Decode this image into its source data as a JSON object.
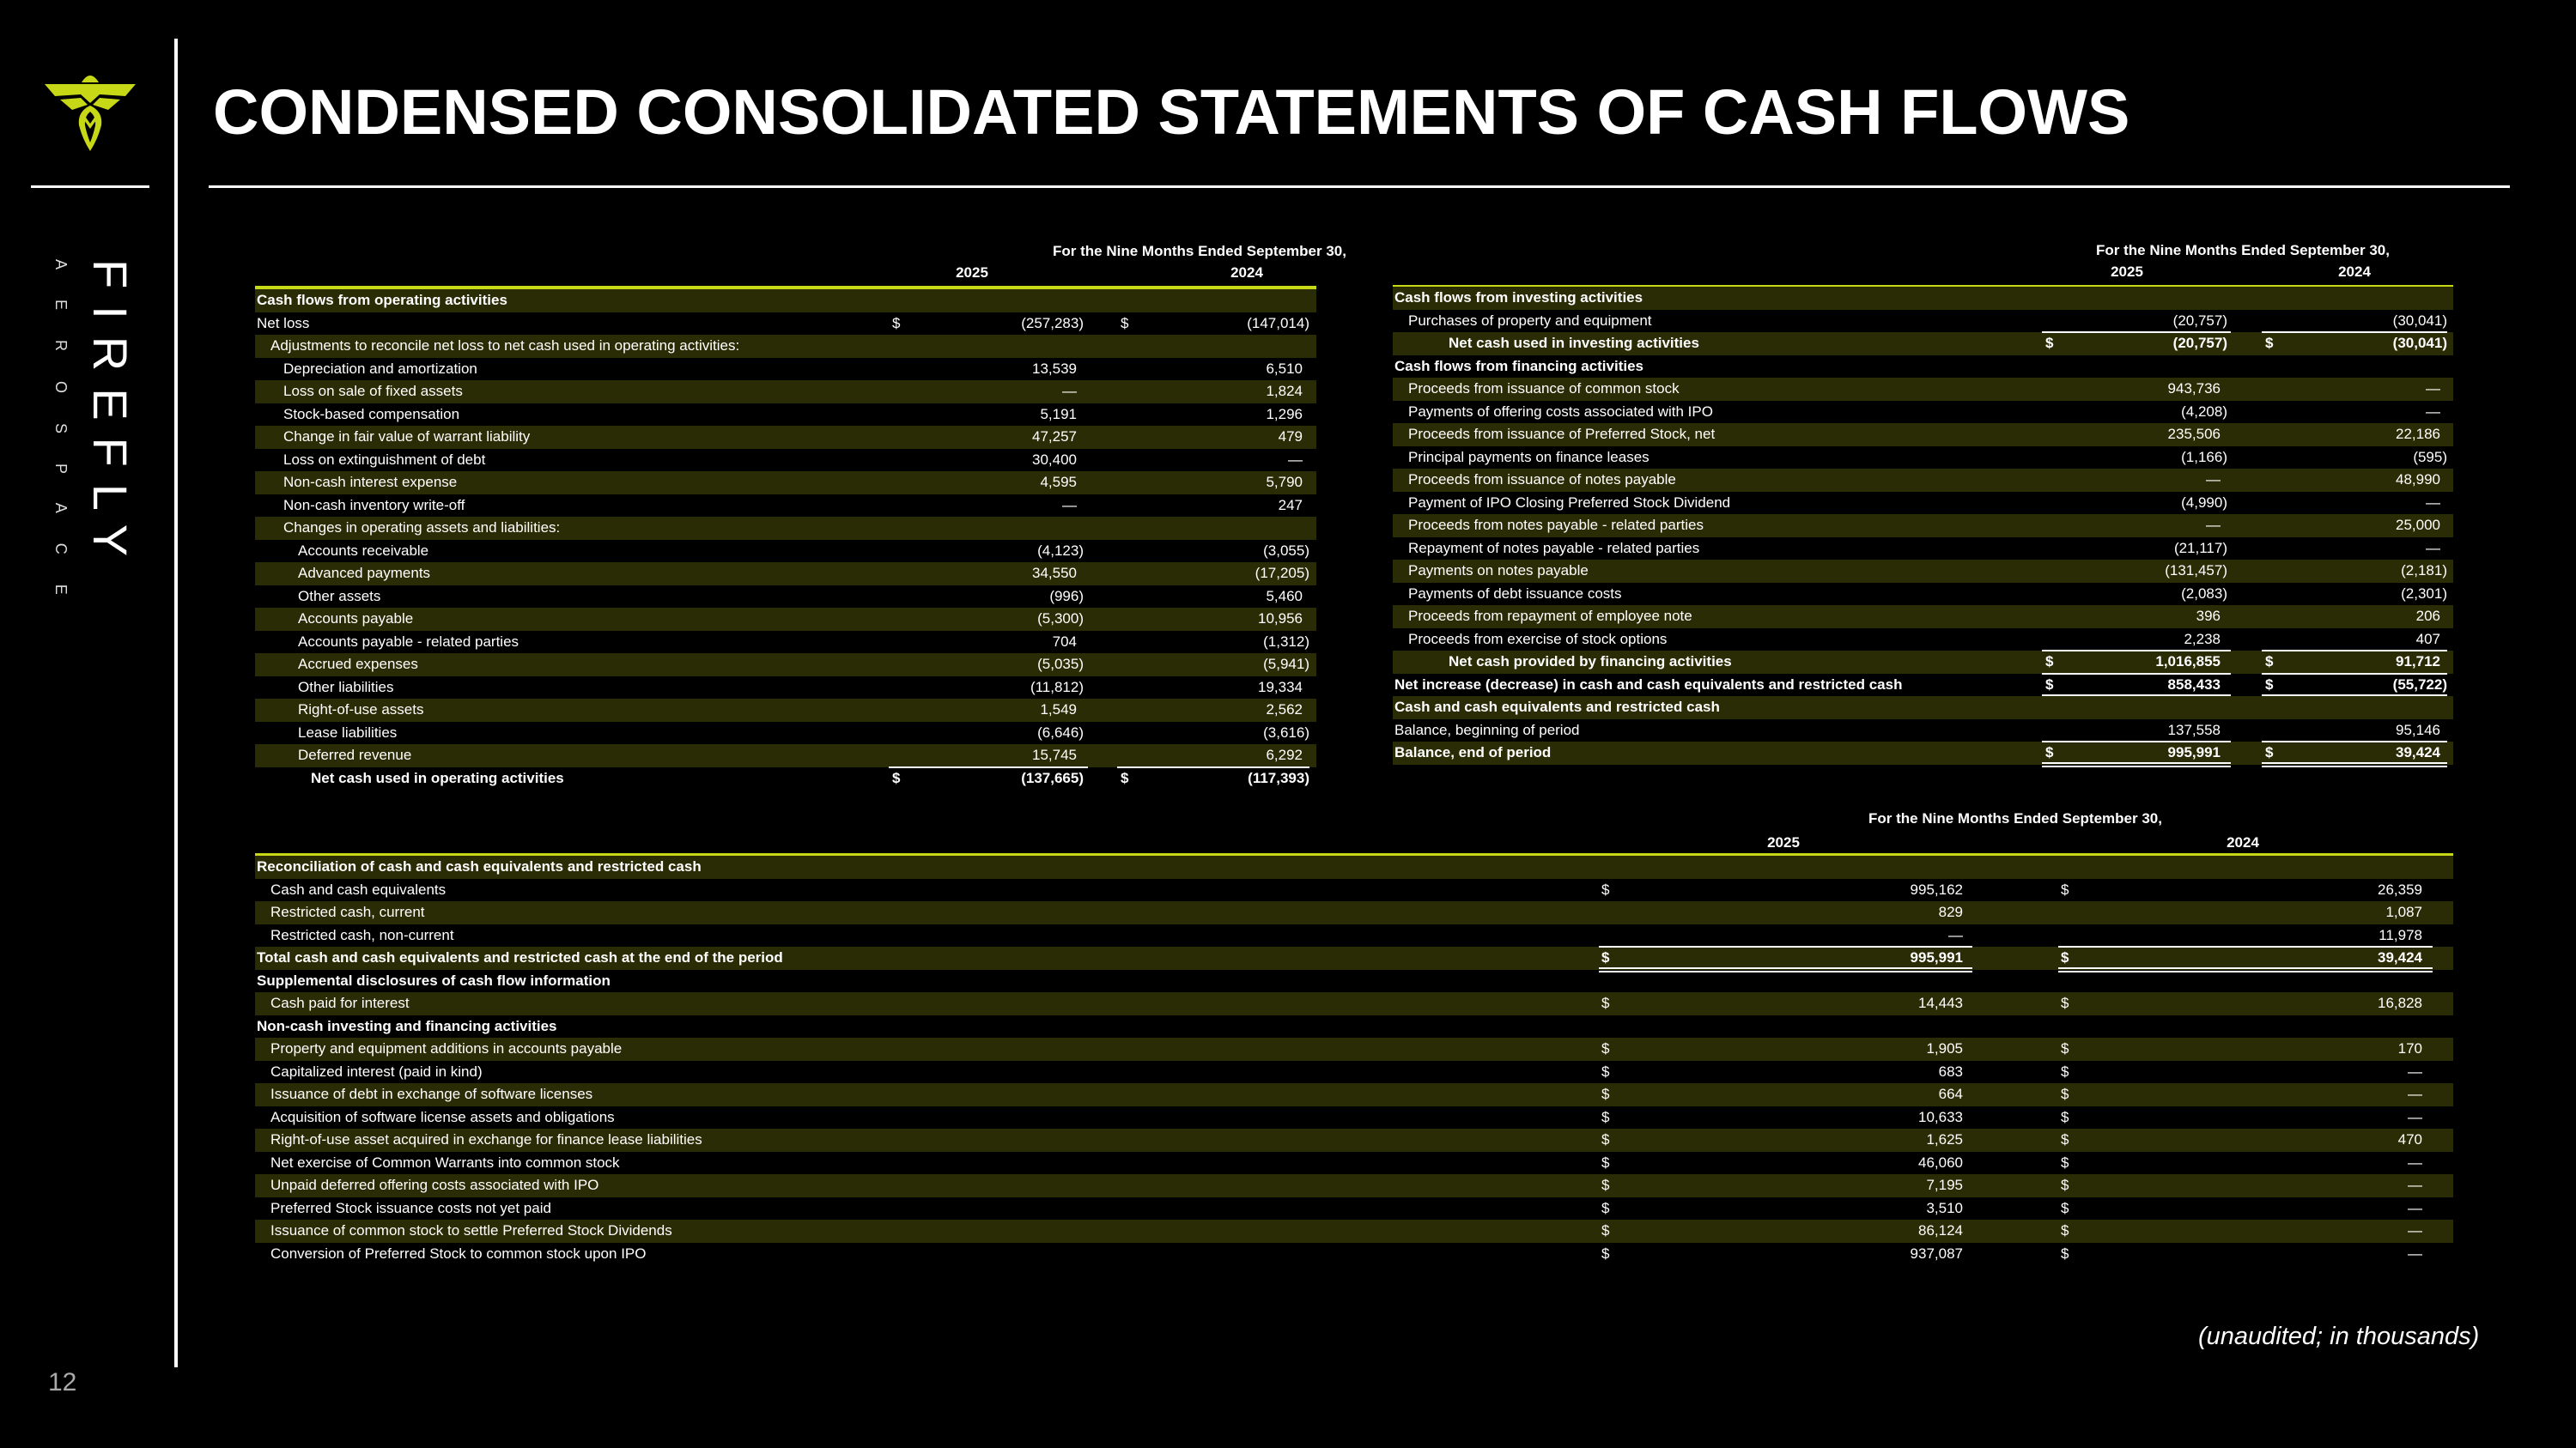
{
  "title": "CONDENSED CONSOLIDATED STATEMENTS OF CASH FLOWS",
  "brand": {
    "wordmark": "FIREFLY",
    "sub": "AEROSPACE",
    "logo_icon": "firefly-logo-icon",
    "accent_color": "#c6d816"
  },
  "page_number": "12",
  "footnote": "(unaudited; in thousands)",
  "operating": {
    "header": "For the Nine Months Ended September 30,",
    "years": [
      "2025",
      "2024"
    ],
    "rows": [
      {
        "label": "Cash flows from operating activities",
        "level": 0,
        "bold": true
      },
      {
        "label": "Net loss",
        "level": 0,
        "d1": "$",
        "v1": "(257,283)",
        "d2": "$",
        "v2": "(147,014)"
      },
      {
        "label": "Adjustments to reconcile net loss to net cash used in operating activities:",
        "level": 1
      },
      {
        "label": "Depreciation and amortization",
        "level": 2,
        "v1": "13,539",
        "v2": "6,510"
      },
      {
        "label": "Loss on sale of fixed assets",
        "level": 2,
        "v1": "—",
        "v2": "1,824"
      },
      {
        "label": "Stock-based compensation",
        "level": 2,
        "v1": "5,191",
        "v2": "1,296"
      },
      {
        "label": "Change in fair value of warrant liability",
        "level": 2,
        "v1": "47,257",
        "v2": "479"
      },
      {
        "label": "Loss on extinguishment of debt",
        "level": 2,
        "v1": "30,400",
        "v2": "—"
      },
      {
        "label": "Non-cash interest expense",
        "level": 2,
        "v1": "4,595",
        "v2": "5,790"
      },
      {
        "label": "Non-cash inventory write-off",
        "level": 2,
        "v1": "—",
        "v2": "247"
      },
      {
        "label": "Changes in operating assets and liabilities:",
        "level": 2
      },
      {
        "label": "Accounts receivable",
        "level": 3,
        "v1": "(4,123)",
        "v2": "(3,055)"
      },
      {
        "label": "Advanced payments",
        "level": 3,
        "v1": "34,550",
        "v2": "(17,205)"
      },
      {
        "label": "Other assets",
        "level": 3,
        "v1": "(996)",
        "v2": "5,460"
      },
      {
        "label": "Accounts payable",
        "level": 3,
        "v1": "(5,300)",
        "v2": "10,956"
      },
      {
        "label": "Accounts payable - related parties",
        "level": 3,
        "v1": "704",
        "v2": "(1,312)"
      },
      {
        "label": "Accrued expenses",
        "level": 3,
        "v1": "(5,035)",
        "v2": "(5,941)"
      },
      {
        "label": "Other liabilities",
        "level": 3,
        "v1": "(11,812)",
        "v2": "19,334"
      },
      {
        "label": "Right-of-use assets",
        "level": 3,
        "v1": "1,549",
        "v2": "2,562"
      },
      {
        "label": "Lease liabilities",
        "level": 3,
        "v1": "(6,646)",
        "v2": "(3,616)"
      },
      {
        "label": "Deferred revenue",
        "level": 3,
        "v1": "15,745",
        "v2": "6,292"
      },
      {
        "label": "Net cash used in operating activities",
        "level": 4,
        "bold": true,
        "d1": "$",
        "v1": "(137,665)",
        "d2": "$",
        "v2": "(117,393)",
        "rule_above": true
      }
    ]
  },
  "investing_financing": {
    "header": "For the Nine Months Ended September 30,",
    "years": [
      "2025",
      "2024"
    ],
    "rows": [
      {
        "label": "Cash flows from investing activities",
        "level": 0,
        "bold": true
      },
      {
        "label": "Purchases of property and equipment",
        "level": 1,
        "v1": "(20,757)",
        "v2": "(30,041)"
      },
      {
        "label": "Net cash used in investing activities",
        "level": 4,
        "bold": true,
        "d1": "$",
        "v1": "(20,757)",
        "d2": "$",
        "v2": "(30,041)",
        "rule_above": true
      },
      {
        "label": "Cash flows from financing activities",
        "level": 0,
        "bold": true
      },
      {
        "label": "Proceeds from issuance of common stock",
        "level": 1,
        "v1": "943,736",
        "v2": "—"
      },
      {
        "label": "Payments of offering costs associated with IPO",
        "level": 1,
        "v1": "(4,208)",
        "v2": "—"
      },
      {
        "label": "Proceeds from issuance of Preferred Stock, net",
        "level": 1,
        "v1": "235,506",
        "v2": "22,186"
      },
      {
        "label": "Principal payments on finance leases",
        "level": 1,
        "v1": "(1,166)",
        "v2": "(595)"
      },
      {
        "label": "Proceeds from issuance of notes payable",
        "level": 1,
        "v1": "—",
        "v2": "48,990"
      },
      {
        "label": "Payment of IPO Closing Preferred Stock Dividend",
        "level": 1,
        "v1": "(4,990)",
        "v2": "—"
      },
      {
        "label": "Proceeds from notes payable - related parties",
        "level": 1,
        "v1": "—",
        "v2": "25,000"
      },
      {
        "label": "Repayment of notes payable - related parties",
        "level": 1,
        "v1": "(21,117)",
        "v2": "—"
      },
      {
        "label": "Payments on notes payable",
        "level": 1,
        "v1": "(131,457)",
        "v2": "(2,181)"
      },
      {
        "label": "Payments of debt issuance costs",
        "level": 1,
        "v1": "(2,083)",
        "v2": "(2,301)"
      },
      {
        "label": "Proceeds from repayment of employee note",
        "level": 1,
        "v1": "396",
        "v2": "206"
      },
      {
        "label": "Proceeds from exercise of stock options",
        "level": 1,
        "v1": "2,238",
        "v2": "407"
      },
      {
        "label": "Net cash provided by financing activities",
        "level": 4,
        "bold": true,
        "d1": "$",
        "v1": "1,016,855",
        "d2": "$",
        "v2": "91,712",
        "rule_above": true
      },
      {
        "label": "Net increase (decrease) in cash and cash equivalents and restricted cash",
        "level": 0,
        "bold": true,
        "d1": "$",
        "v1": "858,433",
        "d2": "$",
        "v2": "(55,722)",
        "rule_above": true,
        "rule_below": true
      },
      {
        "label": "Cash and cash equivalents and restricted cash",
        "level": 0,
        "bold": true
      },
      {
        "label": "Balance, beginning of period",
        "level": 0,
        "v1": "137,558",
        "v2": "95,146"
      },
      {
        "label": "Balance, end of period",
        "level": 0,
        "bold": true,
        "d1": "$",
        "v1": "995,991",
        "d2": "$",
        "v2": "39,424",
        "rule_above": true,
        "double_below": true
      }
    ]
  },
  "reconciliation": {
    "header": "For the Nine Months Ended September 30,",
    "years": [
      "2025",
      "2024"
    ],
    "rows": [
      {
        "label": "Reconciliation of cash and cash equivalents and restricted cash",
        "level": 0,
        "bold": true
      },
      {
        "label": "Cash and cash equivalents",
        "level": 1,
        "d1": "$",
        "v1": "995,162",
        "d2": "$",
        "v2": "26,359"
      },
      {
        "label": "Restricted cash, current",
        "level": 1,
        "v1": "829",
        "v2": "1,087"
      },
      {
        "label": "Restricted cash, non-current",
        "level": 1,
        "v1": "—",
        "v2": "11,978"
      },
      {
        "label": "Total cash and cash equivalents and restricted cash at the end of the period",
        "level": 0,
        "bold": true,
        "d1": "$",
        "v1": "995,991",
        "d2": "$",
        "v2": "39,424",
        "rule_above": true,
        "double_below": true
      },
      {
        "label": "Supplemental disclosures of cash flow information",
        "level": 0,
        "bold": true
      },
      {
        "label": "Cash paid for interest",
        "level": 1,
        "d1": "$",
        "v1": "14,443",
        "d2": "$",
        "v2": "16,828"
      },
      {
        "label": "Non-cash investing and financing activities",
        "level": 0,
        "bold": true
      },
      {
        "label": "Property and equipment additions in accounts payable",
        "level": 1,
        "d1": "$",
        "v1": "1,905",
        "d2": "$",
        "v2": "170"
      },
      {
        "label": "Capitalized interest (paid in kind)",
        "level": 1,
        "d1": "$",
        "v1": "683",
        "d2": "$",
        "v2": "—"
      },
      {
        "label": "Issuance of debt in exchange of software licenses",
        "level": 1,
        "d1": "$",
        "v1": "664",
        "d2": "$",
        "v2": "—"
      },
      {
        "label": "Acquisition of software license assets and obligations",
        "level": 1,
        "d1": "$",
        "v1": "10,633",
        "d2": "$",
        "v2": "—"
      },
      {
        "label": "Right-of-use asset acquired in exchange for finance lease liabilities",
        "level": 1,
        "d1": "$",
        "v1": "1,625",
        "d2": "$",
        "v2": "470"
      },
      {
        "label": "Net exercise of Common Warrants into common stock",
        "level": 1,
        "d1": "$",
        "v1": "46,060",
        "d2": "$",
        "v2": "—"
      },
      {
        "label": "Unpaid deferred offering costs associated with IPO",
        "level": 1,
        "d1": "$",
        "v1": "7,195",
        "d2": "$",
        "v2": "—"
      },
      {
        "label": "Preferred Stock issuance costs not yet paid",
        "level": 1,
        "d1": "$",
        "v1": "3,510",
        "d2": "$",
        "v2": "—"
      },
      {
        "label": "Issuance of common stock to settle Preferred Stock Dividends",
        "level": 1,
        "d1": "$",
        "v1": "86,124",
        "d2": "$",
        "v2": "—"
      },
      {
        "label": "Conversion of Preferred Stock to common stock upon IPO",
        "level": 1,
        "d1": "$",
        "v1": "937,087",
        "d2": "$",
        "v2": "—"
      }
    ]
  }
}
